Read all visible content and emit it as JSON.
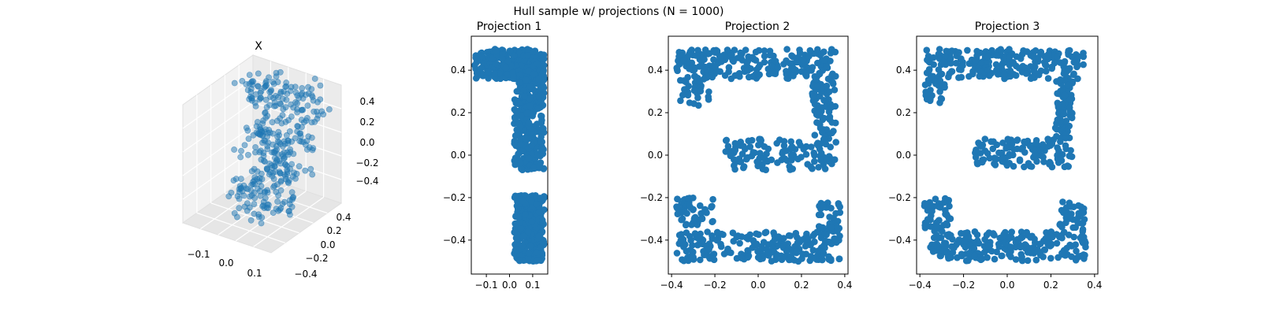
{
  "figure": {
    "suptitle": "Hull sample w/ projections (N = 1000)",
    "marker_color": "#1f77b4",
    "pane_colors": [
      "#f2f2f2",
      "#e6e6e6",
      "#ebebeb"
    ]
  },
  "chart_data": [
    {
      "type": "scatter",
      "projection": "3d",
      "title": "X",
      "x_ticks": [
        "−0.1",
        "0.0",
        "0.1"
      ],
      "y_ticks": [
        "−0.4",
        "−0.2",
        "0.0",
        "0.2",
        "0.4"
      ],
      "z_ticks": [
        "−0.4",
        "−0.2",
        "0.0",
        "0.2",
        "0.4"
      ],
      "xlim": [
        -0.16,
        0.16
      ],
      "ylim": [
        -0.5,
        0.5
      ],
      "zlim": [
        -0.5,
        0.5
      ],
      "marker_alpha": 0.5
    },
    {
      "type": "scatter",
      "title": "Projection 1",
      "xlim": [
        -0.165,
        0.165
      ],
      "ylim": [
        -0.56,
        0.56
      ],
      "x_ticks": [
        "−0.1",
        "0.0",
        "0.1"
      ],
      "x_tick_values": [
        -0.1,
        0.0,
        0.1
      ],
      "y_ticks": [
        "−0.4",
        "−0.2",
        "0.0",
        "0.2",
        "0.4"
      ],
      "y_tick_values": [
        -0.4,
        -0.2,
        0.0,
        0.2,
        0.4
      ],
      "regions": [
        {
          "x": [
            -0.15,
            0.15
          ],
          "y": [
            0.36,
            0.5
          ],
          "n": 280
        },
        {
          "x": [
            0.02,
            0.15
          ],
          "y": [
            -0.07,
            0.36
          ],
          "n": 280
        },
        {
          "x": [
            0.02,
            0.15
          ],
          "y": [
            -0.5,
            -0.19
          ],
          "n": 280
        }
      ]
    },
    {
      "type": "scatter",
      "title": "Projection 2",
      "xlim": [
        -0.415,
        0.415
      ],
      "ylim": [
        -0.56,
        0.56
      ],
      "x_ticks": [
        "−0.4",
        "−0.2",
        "0.0",
        "0.2",
        "0.4"
      ],
      "x_tick_values": [
        -0.4,
        -0.2,
        0.0,
        0.2,
        0.4
      ],
      "y_ticks": [
        "−0.4",
        "−0.2",
        "0.0",
        "0.2",
        "0.4"
      ],
      "y_tick_values": [
        -0.4,
        -0.2,
        0.0,
        0.2,
        0.4
      ],
      "regions": [
        {
          "x": [
            -0.38,
            0.36
          ],
          "y": [
            0.36,
            0.5
          ],
          "n": 230
        },
        {
          "x": [
            -0.36,
            -0.22
          ],
          "y": [
            0.23,
            0.36
          ],
          "n": 30
        },
        {
          "x": [
            0.25,
            0.36
          ],
          "y": [
            0.08,
            0.36
          ],
          "n": 70
        },
        {
          "x": [
            -0.15,
            0.36
          ],
          "y": [
            -0.07,
            0.08
          ],
          "n": 120
        },
        {
          "x": [
            -0.38,
            -0.2
          ],
          "y": [
            -0.33,
            -0.2
          ],
          "n": 50
        },
        {
          "x": [
            0.28,
            0.38
          ],
          "y": [
            -0.36,
            -0.22
          ],
          "n": 40
        },
        {
          "x": [
            -0.38,
            0.38
          ],
          "y": [
            -0.5,
            -0.36
          ],
          "n": 220
        }
      ]
    },
    {
      "type": "scatter",
      "title": "Projection 3",
      "xlim": [
        -0.415,
        0.415
      ],
      "ylim": [
        -0.56,
        0.56
      ],
      "x_ticks": [
        "−0.4",
        "−0.2",
        "0.0",
        "0.2",
        "0.4"
      ],
      "x_tick_values": [
        -0.4,
        -0.2,
        0.0,
        0.2,
        0.4
      ],
      "y_ticks": [
        "−0.4",
        "−0.2",
        "0.0",
        "0.2",
        "0.4"
      ],
      "y_tick_values": [
        -0.4,
        -0.2,
        0.0,
        0.2,
        0.4
      ],
      "regions": [
        {
          "x": [
            -0.37,
            0.35
          ],
          "y": [
            0.36,
            0.5
          ],
          "n": 230
        },
        {
          "x": [
            -0.38,
            -0.28
          ],
          "y": [
            0.24,
            0.36
          ],
          "n": 30
        },
        {
          "x": [
            0.22,
            0.3
          ],
          "y": [
            0.08,
            0.36
          ],
          "n": 70
        },
        {
          "x": [
            -0.15,
            0.3
          ],
          "y": [
            -0.06,
            0.08
          ],
          "n": 120
        },
        {
          "x": [
            -0.38,
            -0.26
          ],
          "y": [
            -0.36,
            -0.2
          ],
          "n": 50
        },
        {
          "x": [
            0.24,
            0.36
          ],
          "y": [
            -0.36,
            -0.22
          ],
          "n": 40
        },
        {
          "x": [
            -0.37,
            0.36
          ],
          "y": [
            -0.5,
            -0.36
          ],
          "n": 220
        }
      ]
    }
  ]
}
